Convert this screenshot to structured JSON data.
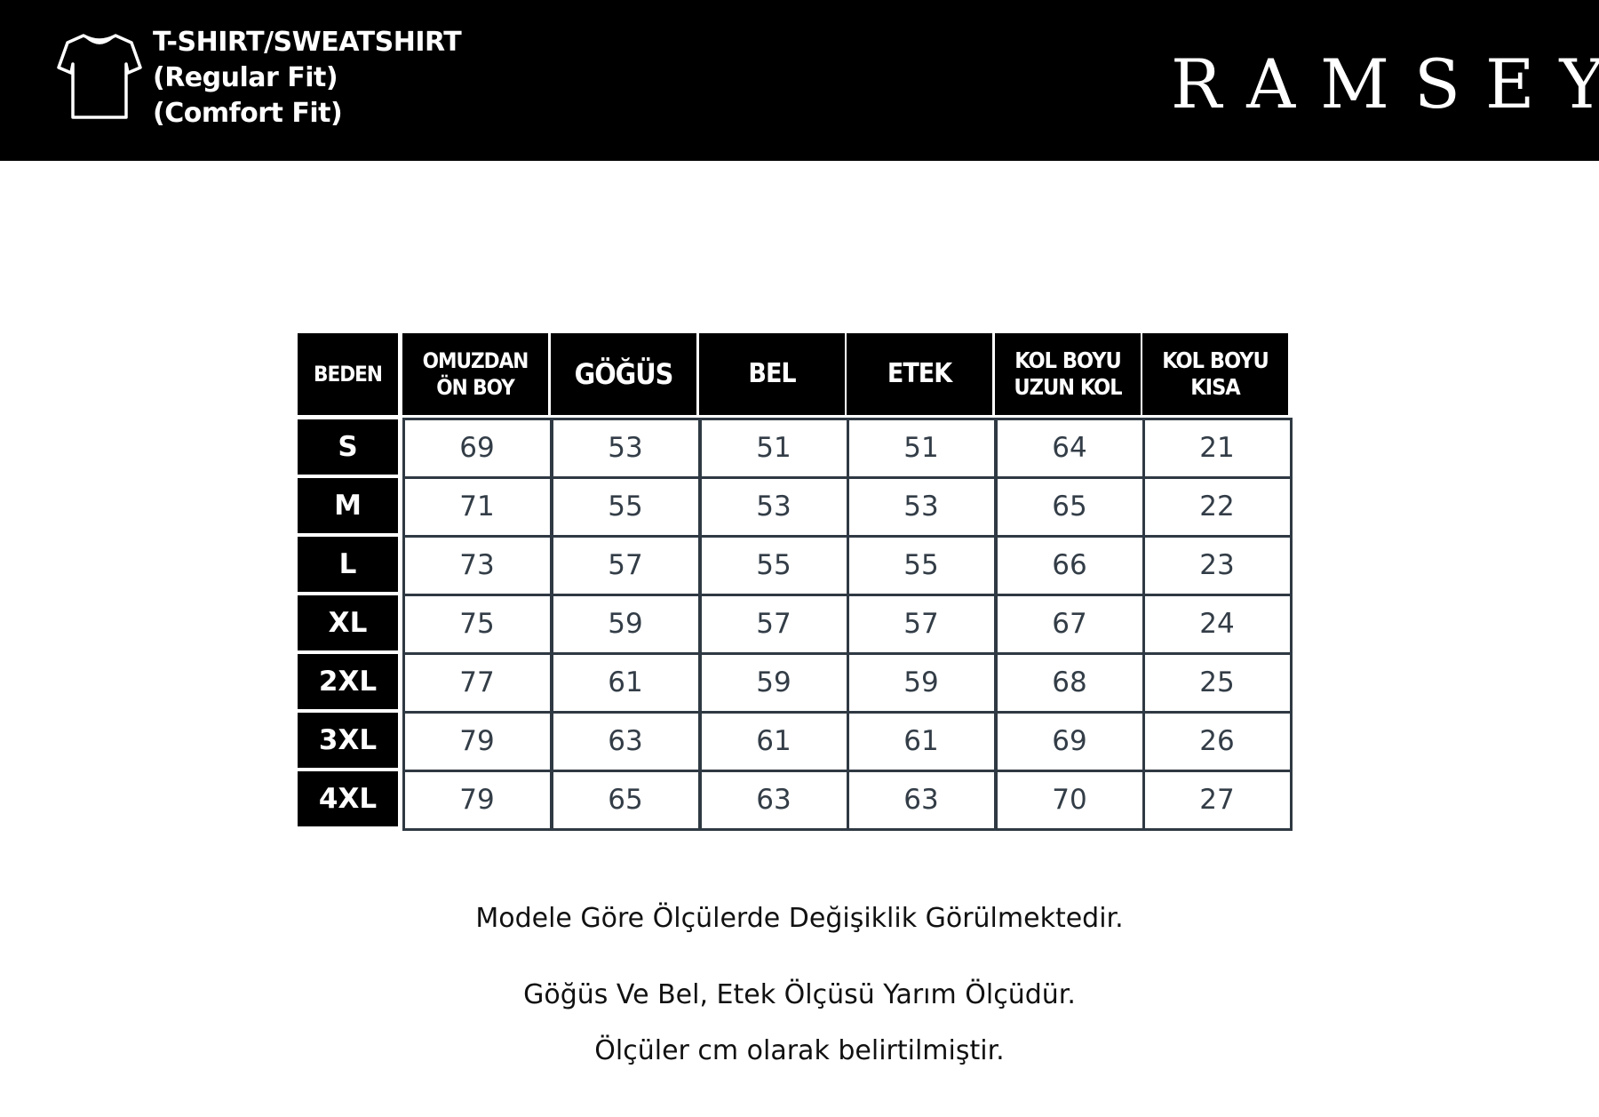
{
  "header": {
    "title_lines": [
      "T-SHIRT/SWEATSHIRT",
      "(Regular Fit)",
      "(Comfort Fit)"
    ],
    "icon": "t-shirt-icon",
    "brand": "RAMSEY",
    "background": "#000000"
  },
  "table": {
    "columns": [
      "BEDEN",
      "OMUZDAN\nÖN BOY",
      "GÖĞÜS",
      "BEL",
      "ETEK",
      "KOL BOYU\nUZUN KOL",
      "KOL BOYU\nKISA"
    ],
    "rows": [
      {
        "size": "S",
        "values": [
          "69",
          "53",
          "51",
          "51",
          "64",
          "21"
        ]
      },
      {
        "size": "M",
        "values": [
          "71",
          "55",
          "53",
          "53",
          "65",
          "22"
        ]
      },
      {
        "size": "L",
        "values": [
          "73",
          "57",
          "55",
          "55",
          "66",
          "23"
        ]
      },
      {
        "size": "XL",
        "values": [
          "75",
          "59",
          "57",
          "57",
          "67",
          "24"
        ]
      },
      {
        "size": "2XL",
        "values": [
          "77",
          "61",
          "59",
          "59",
          "68",
          "25"
        ]
      },
      {
        "size": "3XL",
        "values": [
          "79",
          "63",
          "61",
          "61",
          "69",
          "26"
        ]
      },
      {
        "size": "4XL",
        "values": [
          "79",
          "65",
          "63",
          "63",
          "70",
          "27"
        ]
      }
    ],
    "border_color": "#2f3943"
  },
  "notes": [
    "Modele Göre Ölçülerde Değişiklik Görülmektedir.",
    "Göğüs Ve Bel, Etek Ölçüsü Yarım Ölçüdür.",
    "Ölçüler cm olarak belirtilmiştir."
  ]
}
